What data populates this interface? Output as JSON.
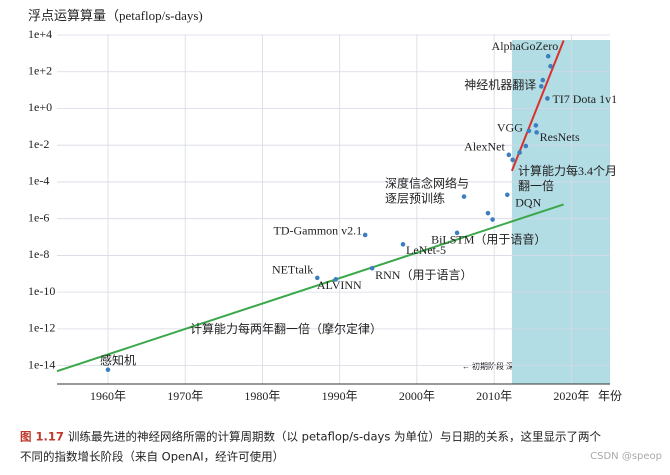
{
  "chart_data": {
    "type": "scatter",
    "title": "浮点运算算量（petaflop/s-days)",
    "x_label": "年份",
    "log_y": true,
    "grid": true,
    "xlim": [
      1953.4,
      2025
    ],
    "ylim": [
      1e-15,
      10000
    ],
    "xticks": [
      {
        "value": 1960,
        "label": "1960年"
      },
      {
        "value": 1970,
        "label": "1970年"
      },
      {
        "value": 1980,
        "label": "1980年"
      },
      {
        "value": 1990,
        "label": "1990年"
      },
      {
        "value": 2000,
        "label": "2000年"
      },
      {
        "value": 2010,
        "label": "2010年"
      },
      {
        "value": 2020,
        "label": "2020年"
      }
    ],
    "yticks": [
      {
        "value": 10000,
        "label": "1e+4"
      },
      {
        "value": 100,
        "label": "1e+2"
      },
      {
        "value": 1,
        "label": "1e+0"
      },
      {
        "value": 0.01,
        "label": "1e-2"
      },
      {
        "value": 0.0001,
        "label": "1e-4"
      },
      {
        "value": 1e-06,
        "label": "1e-6"
      },
      {
        "value": 1e-08,
        "label": "1e-8"
      },
      {
        "value": 1e-10,
        "label": "1e-10"
      },
      {
        "value": 1e-12,
        "label": "1e-12"
      },
      {
        "value": 1e-14,
        "label": "1e-14"
      }
    ],
    "shade_from": 2012.3,
    "shade_color": "#b3dde5",
    "point_color": "#3b7fc0",
    "points": {
      "x": [
        1960,
        1987.1,
        1989.5,
        1994.2,
        1993.3,
        1998.2,
        2005.2,
        2006.1,
        2009.2,
        2009.8,
        2011.7,
        2011.9,
        2012.4,
        2013.3,
        2014.1,
        2014.5,
        2015.4,
        2015.5,
        2016.1,
        2016.3,
        2016.9,
        2017.0,
        2017.3
      ],
      "values": [
        6e-15,
        6e-10,
        5e-10,
        2e-09,
        1.3e-07,
        4e-08,
        1.7e-07,
        1.6e-05,
        2e-06,
        9e-07,
        2e-05,
        0.003,
        0.0016,
        0.004,
        0.009,
        0.06,
        0.12,
        0.05,
        16,
        35,
        3.5,
        700,
        200
      ],
      "labels": [
        "感知机",
        "NETtalk",
        "ALVINN",
        "RNN（用于语言）",
        "TD-Gammon v2.1",
        "LeNet-5",
        "BiLSTM（用于语音）",
        [
          "深度信念网络与",
          "逐层预训练"
        ],
        null,
        null,
        "DQN",
        "AlexNet",
        null,
        null,
        null,
        "VGG",
        null,
        "ResNets",
        "神经机器翻译",
        null,
        "TI7 Dota 1v1",
        "AlphaGoZero",
        null
      ]
    },
    "trend_lines": [
      {
        "x": [
          1953.4,
          2019
        ],
        "values": [
          5e-15,
          6e-06
        ],
        "color": "#3aa84a",
        "label": [
          "计算能力每两年翻一倍（摩尔定律）"
        ]
      },
      {
        "x": [
          2012.3,
          2019
        ],
        "values": [
          0.0004,
          5000
        ],
        "color": "#d9312b",
        "label": [
          "计算能力每3.4个月",
          "翻一倍"
        ]
      }
    ],
    "stage_note": "← 初期阶段   深度学习阶段 →",
    "caption": {
      "number": "图 1.17",
      "lines": [
        "训练最先进的神经网络所需的计算周期数（以 petaflop/s-days 为单位）与日期的关系，这里显示了两个",
        "不同的指数增长阶段（来自 OpenAI，经许可使用）"
      ]
    },
    "watermark": "CSDN @speop"
  }
}
